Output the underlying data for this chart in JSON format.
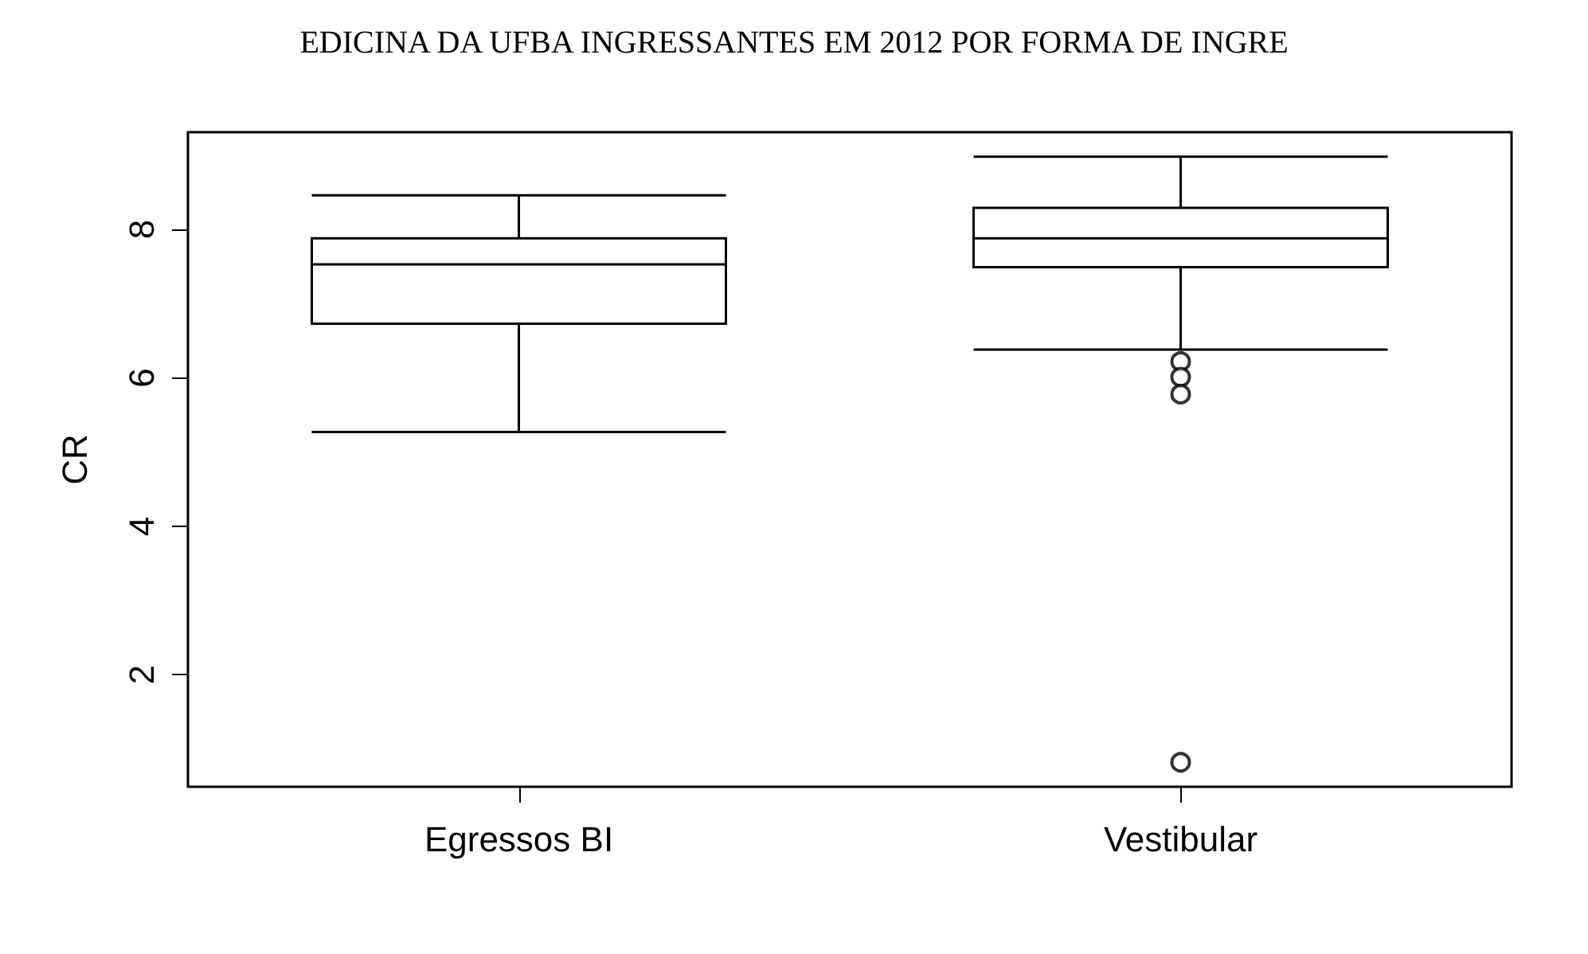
{
  "chart_data": {
    "type": "box",
    "title": "EDICINA DA UFBA INGRESSANTES EM 2012 POR FORMA DE INGRE",
    "ylabel": "CR",
    "categories": [
      "Egressos BI",
      "Vestibular"
    ],
    "boxes": [
      {
        "low": 5.27,
        "q1": 6.73,
        "median": 7.53,
        "q3": 7.88,
        "high": 8.46
      },
      {
        "low": 6.38,
        "q1": 7.49,
        "median": 7.88,
        "q3": 8.29,
        "high": 8.98,
        "outliers": [
          6.22,
          6.01,
          5.78,
          0.82
        ]
      }
    ],
    "color": "#000000",
    "ylim": [
      0.49,
      9.31
    ],
    "yticks": [
      2,
      4,
      6,
      8
    ],
    "grid": false
  }
}
